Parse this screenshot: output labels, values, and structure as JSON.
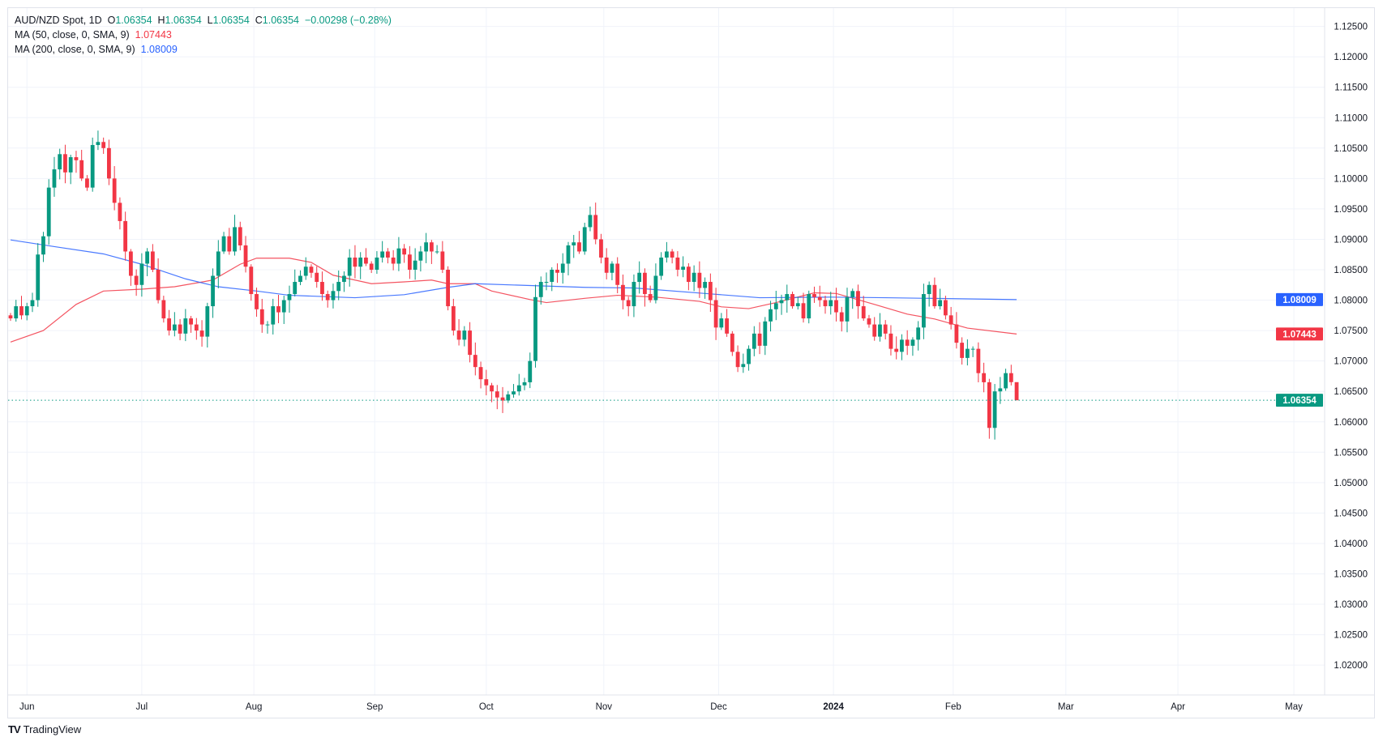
{
  "legend": {
    "symbol": "AUD/NZD Spot, 1D",
    "o_label": "O",
    "o": "1.06354",
    "h_label": "H",
    "h": "1.06354",
    "l_label": "L",
    "l": "1.06354",
    "c_label": "C",
    "c": "1.06354",
    "change": "−0.00298 (−0.28%)",
    "ma50_label": "MA (50, close, 0, SMA, 9)",
    "ma50_value": "1.07443",
    "ma200_label": "MA (200, close, 0, SMA, 9)",
    "ma200_value": "1.08009"
  },
  "branding": {
    "logo_mark": "TV",
    "name": "TradingView"
  },
  "colors": {
    "up": "#089981",
    "down": "#f23645",
    "ma50": "#f23645",
    "ma200": "#2962ff",
    "grid": "#f0f3fa"
  },
  "chart_data": {
    "type": "candlestick",
    "title": "AUD/NZD Spot, 1D",
    "ylim": [
      1.0165,
      1.1275
    ],
    "yticks": [
      "1.12500",
      "1.12000",
      "1.11500",
      "1.11000",
      "1.10500",
      "1.10000",
      "1.09500",
      "1.09000",
      "1.08500",
      "1.08000",
      "1.07500",
      "1.07000",
      "1.06500",
      "1.06000",
      "1.05500",
      "1.05000",
      "1.04500",
      "1.04000",
      "1.03500",
      "1.03000",
      "1.02500",
      "1.02000"
    ],
    "xticks": [
      {
        "label": "Jun",
        "bar": 3
      },
      {
        "label": "Jul",
        "bar": 24
      },
      {
        "label": "Aug",
        "bar": 44.5
      },
      {
        "label": "Sep",
        "bar": 66.6
      },
      {
        "label": "Oct",
        "bar": 87
      },
      {
        "label": "Nov",
        "bar": 108.5
      },
      {
        "label": "Dec",
        "bar": 129.5
      },
      {
        "label": "2024",
        "bar": 150.5,
        "bold": true
      },
      {
        "label": "Feb",
        "bar": 172.4
      },
      {
        "label": "Mar",
        "bar": 193
      },
      {
        "label": "Apr",
        "bar": 213.5
      },
      {
        "label": "May",
        "bar": 234.7
      }
    ],
    "bars_visible": 250,
    "first_open": 1.0775,
    "closes": [
      1.077,
      1.079,
      1.0775,
      1.079,
      1.08,
      1.0875,
      1.0905,
      1.0985,
      1.1015,
      1.104,
      1.101,
      1.1035,
      1.103,
      1.1,
      1.0985,
      1.1055,
      1.106,
      1.105,
      1.1,
      1.096,
      1.093,
      1.088,
      1.084,
      1.0825,
      1.086,
      1.088,
      1.085,
      1.08,
      1.077,
      1.075,
      1.076,
      1.0745,
      1.077,
      1.076,
      1.075,
      1.074,
      1.079,
      1.084,
      1.088,
      1.0905,
      1.088,
      1.092,
      1.089,
      1.0855,
      1.081,
      1.0785,
      1.076,
      1.076,
      1.079,
      1.078,
      1.08,
      1.081,
      1.083,
      1.084,
      1.0855,
      1.0845,
      1.083,
      1.081,
      1.08,
      1.0815,
      1.083,
      1.084,
      1.087,
      1.0855,
      1.087,
      1.086,
      1.085,
      1.087,
      1.088,
      1.087,
      1.086,
      1.0885,
      1.0875,
      1.085,
      1.0865,
      1.088,
      1.0895,
      1.088,
      1.088,
      1.085,
      1.079,
      1.075,
      1.0735,
      1.075,
      1.071,
      1.069,
      1.067,
      1.066,
      1.065,
      1.064,
      1.0635,
      1.0645,
      1.065,
      1.066,
      1.0665,
      1.07,
      1.0805,
      1.083,
      1.083,
      1.085,
      1.0845,
      1.086,
      1.089,
      1.0895,
      1.088,
      1.092,
      1.094,
      1.09,
      1.087,
      1.0845,
      1.086,
      1.0825,
      1.08,
      1.079,
      1.083,
      1.0845,
      1.081,
      1.08,
      1.084,
      1.087,
      1.088,
      1.087,
      1.085,
      1.0855,
      1.083,
      1.0845,
      1.082,
      1.083,
      1.08,
      1.0755,
      1.077,
      1.0745,
      1.0715,
      1.069,
      1.0695,
      1.072,
      1.0745,
      1.0725,
      1.0765,
      1.0785,
      1.0795,
      1.08,
      1.081,
      1.079,
      1.0795,
      1.077,
      1.081,
      1.0805,
      1.08,
      1.079,
      1.08,
      1.078,
      1.0765,
      1.0805,
      1.0815,
      1.079,
      1.077,
      1.076,
      1.074,
      1.076,
      1.0745,
      1.072,
      1.0715,
      1.0735,
      1.0725,
      1.0735,
      1.0755,
      1.081,
      1.0825,
      1.079,
      1.08,
      1.0775,
      1.076,
      1.073,
      1.0705,
      1.072,
      1.072,
      1.068,
      1.0665,
      1.059,
      1.065,
      1.0655,
      1.068,
      1.06652,
      1.06354
    ],
    "ma50": [
      [
        0,
        1.0731
      ],
      [
        6,
        1.075
      ],
      [
        12,
        1.0793
      ],
      [
        17,
        1.0815
      ],
      [
        24,
        1.0818
      ],
      [
        30,
        1.0822
      ],
      [
        37,
        1.0833
      ],
      [
        42,
        1.0859
      ],
      [
        45,
        1.0869
      ],
      [
        51,
        1.0869
      ],
      [
        55,
        1.0862
      ],
      [
        59,
        1.0841
      ],
      [
        66,
        1.0827
      ],
      [
        72,
        1.083
      ],
      [
        77,
        1.0833
      ],
      [
        80,
        1.0827
      ],
      [
        85,
        1.0827
      ],
      [
        88,
        1.0815
      ],
      [
        95,
        1.0801
      ],
      [
        98,
        1.0796
      ],
      [
        105,
        1.0803
      ],
      [
        111,
        1.0808
      ],
      [
        118,
        1.0805
      ],
      [
        126,
        1.0798
      ],
      [
        130,
        1.0789
      ],
      [
        135,
        1.0786
      ],
      [
        140,
        1.0796
      ],
      [
        147,
        1.0812
      ],
      [
        151,
        1.0811
      ],
      [
        158,
        1.0793
      ],
      [
        164,
        1.0777
      ],
      [
        169,
        1.0769
      ],
      [
        175,
        1.0754
      ],
      [
        184,
        1.07443
      ]
    ],
    "ma200": [
      [
        0,
        1.0899
      ],
      [
        8,
        1.0888
      ],
      [
        17,
        1.0876
      ],
      [
        24,
        1.0859
      ],
      [
        32,
        1.0835
      ],
      [
        38,
        1.0822
      ],
      [
        45,
        1.0815
      ],
      [
        51,
        1.0808
      ],
      [
        63,
        1.0804
      ],
      [
        72,
        1.0809
      ],
      [
        80,
        1.0821
      ],
      [
        85,
        1.0827
      ],
      [
        95,
        1.0824
      ],
      [
        105,
        1.0821
      ],
      [
        114,
        1.082
      ],
      [
        127,
        1.0811
      ],
      [
        137,
        1.0804
      ],
      [
        150,
        1.0805
      ],
      [
        160,
        1.0804
      ],
      [
        184,
        1.08009
      ]
    ],
    "price_labels": [
      {
        "value": 1.08009,
        "text": "1.08009",
        "color": "#2962ff"
      },
      {
        "value": 1.07443,
        "text": "1.07443",
        "color": "#f23645"
      },
      {
        "value": 1.06354,
        "text": "1.06354",
        "color": "#089981"
      }
    ],
    "last_price": 1.06354
  }
}
